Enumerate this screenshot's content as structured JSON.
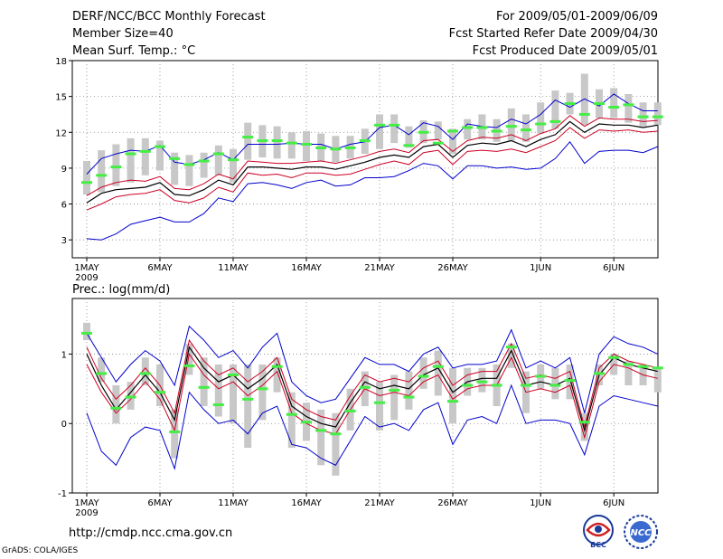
{
  "header": {
    "left": [
      "DERF/NCC/BCC Monthly Forecast",
      "Member Size=40",
      "Mean Surf. Temp.: °C"
    ],
    "right": [
      "For 2009/05/01-2009/06/09",
      "Fcst Started Refer Date 2009/04/30",
      "Fcst Produced Date 2009/05/01"
    ]
  },
  "footer": {
    "url": "http://cmdp.ncc.cma.gov.cn",
    "credit": "GrADS: COLA/IGES"
  },
  "logos": [
    {
      "name": "bcc-logo",
      "text": "BCC"
    },
    {
      "name": "ncc-logo",
      "text": "NCC"
    }
  ],
  "colors": {
    "box": "#c8c8c8",
    "mean": "#000000",
    "spread": "#cc0022",
    "extreme": "#0000cc",
    "marker": "#44ee44",
    "grid": "#888888"
  },
  "chart_data": [
    {
      "type": "box-line",
      "title": "Mean Surf. Temp.: °C",
      "xlabel": "",
      "ylabel": "",
      "ylim": [
        1.5,
        18
      ],
      "yticks": [
        3,
        6,
        9,
        12,
        15,
        18
      ],
      "xticks": [
        {
          "day": 1,
          "label": "1MAY",
          "sub": "2009"
        },
        {
          "day": 6,
          "label": "6MAY"
        },
        {
          "day": 11,
          "label": "11MAY"
        },
        {
          "day": 16,
          "label": "16MAY"
        },
        {
          "day": 21,
          "label": "21MAY"
        },
        {
          "day": 26,
          "label": "26MAY"
        },
        {
          "day": 32,
          "label": "1JUN"
        },
        {
          "day": 37,
          "label": "6JUN"
        }
      ],
      "days": [
        1,
        2,
        3,
        4,
        5,
        6,
        7,
        8,
        9,
        10,
        11,
        12,
        13,
        14,
        15,
        16,
        17,
        18,
        19,
        20,
        21,
        22,
        23,
        24,
        25,
        26,
        27,
        28,
        29,
        30,
        31,
        32,
        33,
        34,
        35,
        36,
        37,
        38,
        39,
        40
      ],
      "series": [
        {
          "name": "max",
          "values": [
            3.1,
            3.0,
            3.5,
            4.3,
            4.6,
            4.9,
            4.5,
            4.5,
            5.2,
            6.5,
            6.2,
            7.7,
            7.8,
            7.6,
            7.3,
            7.8,
            8.0,
            7.5,
            7.6,
            8.2,
            8.2,
            8.3,
            8.8,
            9.4,
            9.2,
            8.1,
            9.2,
            9.2,
            9.0,
            9.1,
            8.9,
            9.0,
            9.8,
            11.2,
            9.4,
            10.4,
            10.5,
            10.5,
            10.3,
            10.8
          ]
        },
        {
          "name": "upper",
          "values": [
            5.5,
            6.0,
            6.6,
            6.8,
            6.9,
            7.2,
            6.3,
            6.1,
            6.5,
            7.4,
            7.0,
            8.6,
            8.4,
            8.5,
            8.2,
            8.6,
            8.6,
            8.4,
            8.5,
            8.9,
            9.3,
            9.6,
            9.3,
            10.3,
            10.5,
            9.3,
            10.4,
            10.5,
            10.4,
            10.6,
            10.3,
            10.8,
            11.3,
            12.4,
            11.5,
            12.2,
            12.1,
            12.2,
            12.0,
            12.1
          ]
        },
        {
          "name": "mean",
          "values": [
            6.1,
            6.9,
            7.2,
            7.3,
            7.4,
            7.8,
            6.8,
            6.7,
            7.2,
            8.0,
            7.6,
            9.1,
            9.1,
            9.0,
            8.9,
            9.1,
            9.1,
            8.9,
            9.2,
            9.5,
            9.9,
            10.1,
            9.9,
            10.8,
            11.0,
            9.9,
            10.9,
            11.1,
            11.0,
            11.3,
            10.8,
            11.4,
            11.8,
            12.9,
            12.0,
            12.7,
            12.6,
            12.6,
            12.4,
            12.6
          ]
        },
        {
          "name": "lower",
          "values": [
            6.7,
            7.4,
            7.8,
            8.0,
            7.9,
            8.3,
            7.3,
            7.2,
            7.7,
            8.5,
            8.1,
            9.6,
            9.5,
            9.4,
            9.4,
            9.5,
            9.6,
            9.4,
            9.7,
            10.0,
            10.4,
            10.6,
            10.3,
            11.3,
            11.4,
            10.4,
            11.3,
            11.6,
            11.5,
            11.8,
            11.3,
            11.9,
            12.3,
            13.4,
            12.5,
            13.2,
            13.1,
            13.1,
            12.9,
            13.0
          ]
        },
        {
          "name": "min",
          "values": [
            8.5,
            9.8,
            10.2,
            10.5,
            10.4,
            10.9,
            9.5,
            9.3,
            9.7,
            10.3,
            9.7,
            11.0,
            11.0,
            11.0,
            11.1,
            11.0,
            11.0,
            10.6,
            11.0,
            11.2,
            12.4,
            12.6,
            11.8,
            12.8,
            12.5,
            11.4,
            12.7,
            12.5,
            12.4,
            13.1,
            12.7,
            13.5,
            14.7,
            14.1,
            14.8,
            14.2,
            15.2,
            14.4,
            13.8,
            13.8
          ]
        },
        {
          "name": "box_low",
          "values": [
            6.8,
            7.0,
            7.5,
            7.8,
            8.4,
            8.8,
            7.6,
            7.5,
            8.2,
            8.4,
            7.8,
            9.7,
            9.9,
            9.8,
            9.8,
            9.6,
            9.6,
            9.5,
            9.8,
            10.2,
            10.6,
            11.1,
            10.7,
            11.1,
            11.4,
            10.2,
            11.4,
            11.4,
            11.2,
            11.3,
            11.2,
            11.9,
            12.3,
            13.5,
            12.6,
            13.2,
            13.2,
            12.8,
            12.5,
            12.6
          ]
        },
        {
          "name": "box_high",
          "values": [
            9.6,
            10.5,
            11.0,
            11.5,
            11.5,
            11.3,
            10.3,
            10.1,
            10.3,
            10.9,
            10.6,
            12.8,
            12.6,
            12.5,
            12.0,
            12.1,
            11.9,
            11.7,
            11.7,
            12.3,
            13.5,
            13.5,
            12.5,
            13.0,
            12.9,
            12.3,
            13.1,
            13.5,
            13.1,
            14.0,
            13.5,
            14.5,
            15.5,
            15.3,
            16.9,
            15.6,
            15.7,
            15.2,
            14.5,
            14.5
          ]
        },
        {
          "name": "marker",
          "values": [
            7.8,
            8.4,
            9.1,
            10.2,
            10.4,
            10.8,
            9.8,
            9.3,
            9.6,
            10.2,
            9.7,
            11.6,
            11.3,
            11.3,
            11.1,
            11.0,
            10.7,
            10.6,
            10.7,
            11.3,
            12.6,
            12.6,
            10.9,
            12.0,
            11.1,
            12.1,
            12.4,
            12.4,
            12.1,
            12.5,
            12.2,
            12.7,
            12.9,
            14.4,
            13.5,
            14.4,
            14.1,
            14.3,
            13.3,
            13.3
          ]
        }
      ]
    },
    {
      "type": "box-line",
      "title": "Prec.: log(mm/d)",
      "xlabel": "",
      "ylabel": "",
      "ylim": [
        -1,
        1.8
      ],
      "yticks": [
        -1,
        0,
        1
      ],
      "xticks": [
        {
          "day": 1,
          "label": "1MAY",
          "sub": "2009"
        },
        {
          "day": 6,
          "label": "6MAY"
        },
        {
          "day": 11,
          "label": "11MAY"
        },
        {
          "day": 16,
          "label": "16MAY"
        },
        {
          "day": 21,
          "label": "21MAY"
        },
        {
          "day": 26,
          "label": "26MAY"
        },
        {
          "day": 32,
          "label": "1JUN"
        },
        {
          "day": 37,
          "label": "6JUN"
        }
      ],
      "days": [
        1,
        2,
        3,
        4,
        5,
        6,
        7,
        8,
        9,
        10,
        11,
        12,
        13,
        14,
        15,
        16,
        17,
        18,
        19,
        20,
        21,
        22,
        23,
        24,
        25,
        26,
        27,
        28,
        29,
        30,
        31,
        32,
        33,
        34,
        35,
        36,
        37,
        38,
        39,
        40
      ],
      "series": [
        {
          "name": "max",
          "values": [
            1.3,
            0.95,
            0.6,
            0.85,
            1.05,
            0.9,
            0.55,
            1.4,
            1.2,
            0.95,
            1.05,
            0.8,
            1.1,
            1.3,
            0.6,
            0.4,
            0.3,
            0.35,
            0.65,
            0.95,
            0.85,
            0.85,
            0.75,
            1.0,
            1.1,
            0.8,
            0.85,
            0.85,
            0.9,
            1.35,
            0.8,
            0.9,
            0.8,
            0.95,
            0.15,
            1.0,
            1.25,
            1.15,
            1.1,
            1.0
          ]
        },
        {
          "name": "upper",
          "values": [
            1.1,
            0.65,
            0.35,
            0.55,
            0.8,
            0.55,
            0.15,
            1.2,
            0.9,
            0.7,
            0.8,
            0.6,
            0.75,
            0.95,
            0.35,
            0.2,
            0.1,
            0.05,
            0.4,
            0.7,
            0.6,
            0.65,
            0.6,
            0.8,
            0.9,
            0.55,
            0.7,
            0.75,
            0.75,
            1.15,
            0.65,
            0.7,
            0.65,
            0.75,
            -0.05,
            0.8,
            1.0,
            0.9,
            0.85,
            0.8
          ]
        },
        {
          "name": "mean",
          "values": [
            1.0,
            0.55,
            0.2,
            0.45,
            0.7,
            0.45,
            0.05,
            1.1,
            0.8,
            0.6,
            0.7,
            0.5,
            0.65,
            0.85,
            0.25,
            0.1,
            0.0,
            -0.05,
            0.3,
            0.6,
            0.5,
            0.55,
            0.5,
            0.7,
            0.8,
            0.45,
            0.6,
            0.65,
            0.65,
            1.05,
            0.55,
            0.6,
            0.55,
            0.65,
            -0.1,
            0.7,
            0.95,
            0.85,
            0.8,
            0.75
          ]
        },
        {
          "name": "lower",
          "values": [
            0.85,
            0.45,
            0.15,
            0.35,
            0.6,
            0.35,
            -0.1,
            1.0,
            0.7,
            0.5,
            0.6,
            0.4,
            0.55,
            0.75,
            0.15,
            0.0,
            -0.1,
            -0.15,
            0.2,
            0.5,
            0.4,
            0.45,
            0.4,
            0.6,
            0.7,
            0.35,
            0.5,
            0.55,
            0.55,
            0.95,
            0.45,
            0.5,
            0.45,
            0.55,
            -0.2,
            0.6,
            0.85,
            0.8,
            0.7,
            0.65
          ]
        },
        {
          "name": "min",
          "values": [
            0.15,
            -0.4,
            -0.6,
            -0.2,
            -0.05,
            -0.1,
            -0.65,
            0.45,
            0.2,
            0.0,
            0.05,
            -0.15,
            0.15,
            0.25,
            -0.3,
            -0.35,
            -0.5,
            -0.6,
            -0.25,
            0.1,
            -0.05,
            0.0,
            -0.1,
            0.2,
            0.3,
            -0.3,
            0.05,
            0.1,
            0.0,
            0.55,
            0.0,
            0.05,
            0.05,
            0.0,
            -0.45,
            0.25,
            0.4,
            0.35,
            0.3,
            0.25
          ]
        },
        {
          "name": "box_low",
          "values": [
            1.2,
            0.6,
            0.0,
            0.2,
            0.55,
            0.25,
            -0.5,
            0.7,
            0.25,
            0.1,
            0.0,
            -0.35,
            0.05,
            0.45,
            -0.35,
            -0.25,
            -0.6,
            -0.75,
            -0.1,
            0.25,
            -0.1,
            0.05,
            0.2,
            0.5,
            0.4,
            0.0,
            0.4,
            0.45,
            0.25,
            0.8,
            0.15,
            0.5,
            0.35,
            0.35,
            -0.25,
            0.55,
            0.7,
            0.55,
            0.55,
            0.45
          ]
        },
        {
          "name": "box_high",
          "values": [
            1.45,
            0.95,
            0.55,
            0.6,
            0.95,
            0.85,
            0.2,
            1.15,
            0.95,
            0.85,
            0.85,
            0.85,
            0.85,
            0.95,
            0.45,
            0.3,
            0.2,
            0.15,
            0.5,
            0.75,
            0.6,
            0.7,
            0.75,
            0.95,
            1.05,
            0.8,
            0.8,
            0.8,
            0.85,
            1.15,
            0.75,
            0.85,
            0.8,
            0.85,
            0.15,
            0.85,
            1.0,
            0.9,
            0.85,
            0.8
          ]
        },
        {
          "name": "marker",
          "values": [
            1.3,
            0.72,
            0.22,
            0.38,
            0.72,
            0.45,
            -0.12,
            0.83,
            0.52,
            0.27,
            0.7,
            0.35,
            0.5,
            0.82,
            0.13,
            0.02,
            -0.1,
            -0.15,
            0.18,
            0.52,
            0.3,
            0.48,
            0.38,
            0.68,
            0.82,
            0.32,
            0.55,
            0.6,
            0.55,
            1.1,
            0.55,
            0.68,
            0.55,
            0.62,
            0.02,
            0.72,
            0.95,
            0.85,
            0.82,
            0.8
          ]
        }
      ]
    }
  ]
}
